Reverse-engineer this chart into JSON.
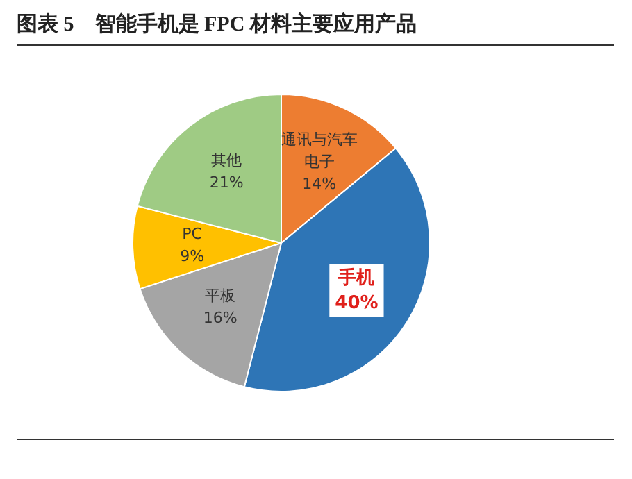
{
  "chart_data": {
    "type": "pie",
    "title": "图表 5　智能手机是 FPC 材料主要应用产品",
    "categories": [
      "通讯与汽车电子",
      "手机",
      "平板",
      "PC",
      "其他"
    ],
    "values": [
      14,
      40,
      16,
      9,
      21
    ],
    "value_labels": [
      "14%",
      "40%",
      "16%",
      "9%",
      "21%"
    ],
    "colors": [
      "#ed7d31",
      "#2e75b6",
      "#a5a5a5",
      "#ffc000",
      "#9fcb84"
    ],
    "legend": false
  }
}
